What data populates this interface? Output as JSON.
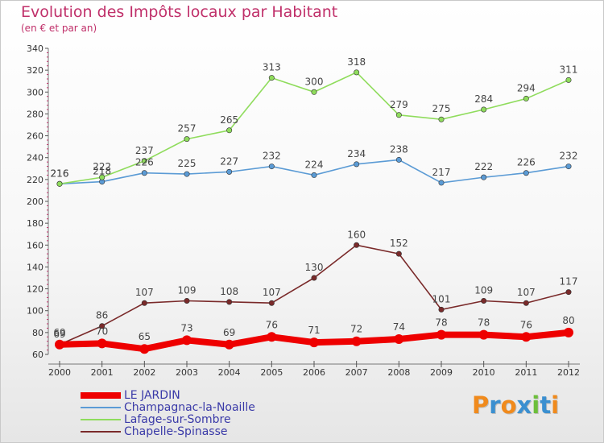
{
  "title": "Evolution des Impôts locaux par Habitant",
  "subtitle": "(en € et par an)",
  "brand": {
    "letters": [
      {
        "ch": "P",
        "color": "#f08a1c"
      },
      {
        "ch": "r",
        "color": "#3a8fd0"
      },
      {
        "ch": "o",
        "color": "#f08a1c"
      },
      {
        "ch": "x",
        "color": "#3a8fd0"
      },
      {
        "ch": "i",
        "color": "#6cbf3a"
      },
      {
        "ch": "t",
        "color": "#3a8fd0"
      },
      {
        "ch": "i",
        "color": "#f08a1c"
      }
    ]
  },
  "chart_data": {
    "type": "line",
    "title": "Evolution des Impôts locaux par Habitant",
    "subtitle": "(en € et par an)",
    "xlabel": "",
    "ylabel": "",
    "x": [
      "2000",
      "2001",
      "2002",
      "2003",
      "2004",
      "2005",
      "2006",
      "2007",
      "2008",
      "2009",
      "2010",
      "2011",
      "2012"
    ],
    "ylim": [
      60,
      340
    ],
    "yticks": [
      60,
      80,
      100,
      120,
      140,
      160,
      180,
      200,
      220,
      240,
      260,
      280,
      300,
      320,
      340
    ],
    "grid": false,
    "legend_position": "bottom-left",
    "series": [
      {
        "name": "LE JARDIN",
        "color": "#ee0000",
        "style": "thick",
        "values": [
          69,
          70,
          65,
          73,
          69,
          76,
          71,
          72,
          74,
          78,
          78,
          76,
          80
        ]
      },
      {
        "name": "Champagnac-la-Noaille",
        "color": "#5b9bd5",
        "style": "thin",
        "values": [
          216,
          218,
          226,
          225,
          227,
          232,
          224,
          234,
          238,
          217,
          222,
          226,
          232
        ]
      },
      {
        "name": "Lafage-sur-Sombre",
        "color": "#8fdc5c",
        "style": "thin",
        "values": [
          216,
          222,
          237,
          257,
          265,
          313,
          300,
          318,
          279,
          275,
          284,
          294,
          311
        ]
      },
      {
        "name": "Chapelle-Spinasse",
        "color": "#7a2a2a",
        "style": "thin",
        "values": [
          69,
          86,
          107,
          109,
          108,
          107,
          130,
          160,
          152,
          101,
          109,
          107,
          117
        ]
      }
    ]
  }
}
